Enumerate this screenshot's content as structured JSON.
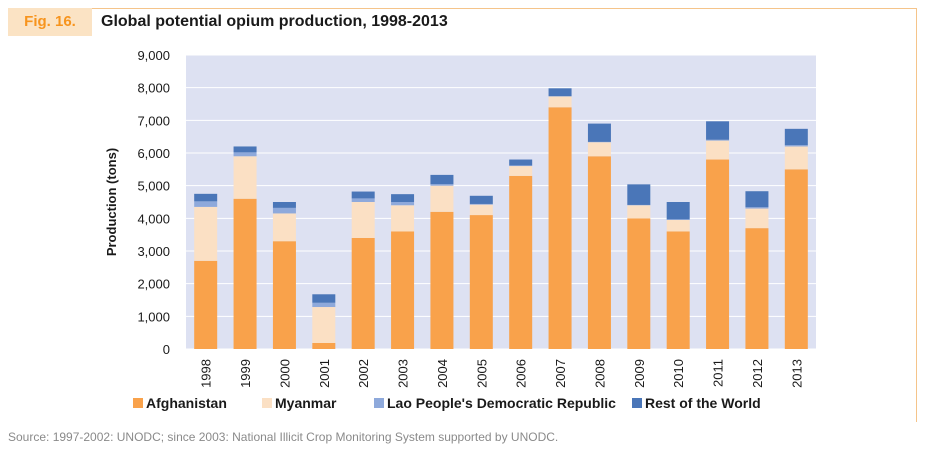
{
  "figure": {
    "label": "Fig. 16.",
    "title": "Global potential opium production, 1998-2013",
    "source": "Source: 1997-2002: UNODC; since 2003: National Illicit Crop Monitoring System supported by UNODC."
  },
  "colors": {
    "plot_background": "#dde1f2",
    "afghanistan": "#f9a24b",
    "myanmar": "#fbe0c4",
    "lao": "#8ea9db",
    "rest": "#4a76b8",
    "accent": "#f7941d"
  },
  "chart_data": {
    "type": "bar",
    "stacked": true,
    "title": "Global potential opium production, 1998-2013",
    "xlabel": "",
    "ylabel": "Production (tons)",
    "ylim": [
      0,
      9000
    ],
    "yticks": [
      0,
      1000,
      2000,
      3000,
      4000,
      5000,
      6000,
      7000,
      8000,
      9000
    ],
    "ytick_labels": [
      "0",
      "1,000",
      "2,000",
      "3,000",
      "4,000",
      "5,000",
      "6,000",
      "7,000",
      "8,000",
      "9,000"
    ],
    "grid": true,
    "legend_position": "bottom",
    "categories": [
      "1998",
      "1999",
      "2000",
      "2001",
      "2002",
      "2003",
      "2004",
      "2005",
      "2006",
      "2007",
      "2008",
      "2009",
      "2010",
      "2011",
      "2012",
      "2013"
    ],
    "series": [
      {
        "name": "Afghanistan",
        "color": "#f9a24b",
        "values": [
          2700,
          4600,
          3300,
          185,
          3400,
          3600,
          4200,
          4100,
          5300,
          7400,
          5900,
          4000,
          3600,
          5800,
          3700,
          5500
        ]
      },
      {
        "name": "Myanmar",
        "color": "#fbe0c4",
        "values": [
          1650,
          1300,
          850,
          1100,
          1100,
          800,
          800,
          320,
          300,
          330,
          430,
          400,
          350,
          580,
          600,
          700
        ]
      },
      {
        "name": "Lao People's Democratic Republic",
        "color": "#8ea9db",
        "values": [
          170,
          120,
          170,
          130,
          110,
          100,
          45,
          20,
          20,
          10,
          10,
          10,
          20,
          25,
          40,
          40
        ]
      },
      {
        "name": "Rest of the World",
        "color": "#4a76b8",
        "values": [
          230,
          180,
          180,
          260,
          210,
          240,
          285,
          250,
          180,
          240,
          560,
          630,
          530,
          565,
          490,
          500
        ]
      }
    ]
  }
}
